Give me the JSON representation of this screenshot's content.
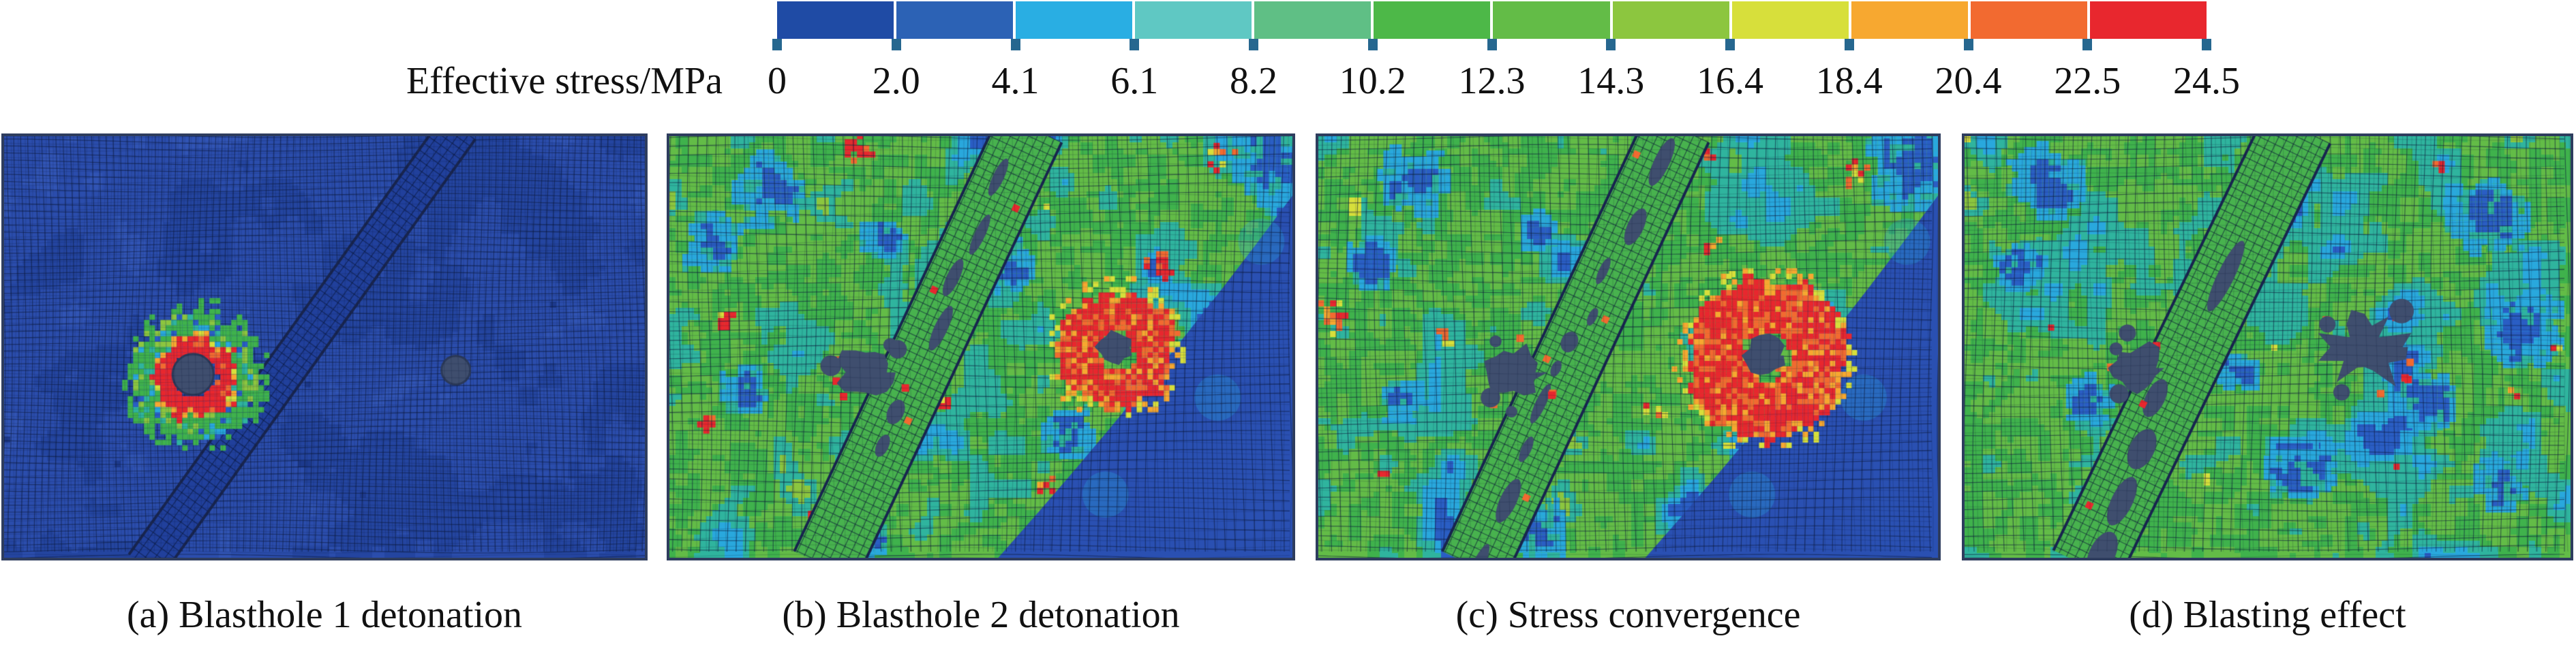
{
  "colorbar": {
    "label": "Effective stress/MPa",
    "tick_labels": [
      "0",
      "2.0",
      "4.1",
      "6.1",
      "8.2",
      "10.2",
      "12.3",
      "14.3",
      "16.4",
      "18.4",
      "20.4",
      "22.5",
      "24.5"
    ],
    "values_mpa": [
      0,
      2.0,
      4.1,
      6.1,
      8.2,
      10.2,
      12.3,
      14.3,
      16.4,
      18.4,
      20.4,
      22.5,
      24.5
    ],
    "segment_colors": [
      "#1f4ba5",
      "#2c62b5",
      "#29aee3",
      "#5fc8c3",
      "#5fbf85",
      "#4db848",
      "#63bc47",
      "#8cc63f",
      "#d7df3b",
      "#f7a830",
      "#f26a30",
      "#e8272e"
    ],
    "tick_color": "#26678f",
    "text_color": "#111111"
  },
  "panels": [
    {
      "id": "a",
      "caption": "(a) Blasthole 1 detonation"
    },
    {
      "id": "b",
      "caption": "(b) Blasthole 2 detonation"
    },
    {
      "id": "c",
      "caption": "(c) Stress convergence"
    },
    {
      "id": "d",
      "caption": "(d) Blasting effect"
    }
  ],
  "chart_data": {
    "type": "heatmap",
    "title": "",
    "legend_label": "Effective stress/MPa",
    "unit": "MPa",
    "scale_ticks": [
      0,
      2.0,
      4.1,
      6.1,
      8.2,
      10.2,
      12.3,
      14.3,
      16.4,
      18.4,
      20.4,
      22.5,
      24.5
    ],
    "scale_colors": [
      "#1f4ba5",
      "#2c62b5",
      "#29aee3",
      "#5fc8c3",
      "#5fbf85",
      "#4db848",
      "#63bc47",
      "#8cc63f",
      "#d7df3b",
      "#f7a830",
      "#f26a30",
      "#e8272e"
    ],
    "legend_position": "top",
    "grid": "finite-element mesh",
    "palette": {
      "green": "#3fb24c",
      "green2": "#63bc47",
      "lightgreen": "#8cc63f",
      "teal": "#2fb49e",
      "cyan": "#29a8dd",
      "blue": "#2a5ec4",
      "deepblue": "#2547a4",
      "yellow": "#d7df3b",
      "orange": "#f7a830",
      "orangered": "#f26a30",
      "red": "#e8272e",
      "void": "#3f4e6e",
      "regionblue": "#2a50b2"
    },
    "panels": [
      {
        "label": "(a) Blasthole 1 detonation",
        "summary": "Domain almost entirely at 0-2 MPa (dark blue); localized high-stress ring up to ~24.5 MPa around blasthole 1; blasthole 2 and inclined joint band still unstressed.",
        "features": {
          "seed": 11,
          "style": "blue",
          "mesh": 10,
          "band": {
            "top": 0.71,
            "bottom": 0.22,
            "width": 58,
            "damaged": false
          },
          "holes": [
            {
              "x": 0.295,
              "y": 0.565,
              "r": 30,
              "halo": "ring",
              "haloR": 96
            },
            {
              "x": 0.705,
              "y": 0.555,
              "r": 21,
              "halo": "plain"
            }
          ],
          "red_clusters": [],
          "blue_clusters": [],
          "dark_region": false
        }
      },
      {
        "label": "(b) Blasthole 2 detonation",
        "summary": "Stress spread over domain (mostly 6-12 MPa, green); >20 MPa red zone around blasthole 2 and spots along joint; damaged void elements at blasthole 1 and in joint band; 0-4 MPa shadow in lower-right corner.",
        "features": {
          "seed": 22,
          "style": "cool",
          "mesh": 14,
          "band": {
            "top": 0.58,
            "bottom": 0.25,
            "width": 100,
            "damaged": true,
            "scale": 1
          },
          "holes": [
            {
              "x": 0.315,
              "y": 0.56,
              "r": 46,
              "halo": "blob"
            },
            {
              "x": 0.715,
              "y": 0.5,
              "r": 26,
              "halo": "red",
              "haloR": 86
            }
          ],
          "red_clusters": [
            [
              0.3,
              0.02,
              26
            ],
            [
              0.57,
              0.08,
              18
            ],
            [
              0.08,
              0.42,
              20
            ],
            [
              0.88,
              0.04,
              24
            ],
            [
              0.78,
              0.3,
              26
            ],
            [
              0.43,
              0.63,
              16
            ],
            [
              0.6,
              0.82,
              18
            ],
            [
              0.23,
              0.9,
              16
            ],
            [
              0.05,
              0.67,
              14
            ]
          ],
          "blue_clusters": [
            [
              0.16,
              0.12,
              55
            ],
            [
              0.07,
              0.25,
              45
            ],
            [
              0.54,
              0.3,
              38
            ],
            [
              0.34,
              0.24,
              32
            ],
            [
              0.64,
              0.7,
              40
            ],
            [
              0.12,
              0.6,
              36
            ],
            [
              0.97,
              0.05,
              70
            ],
            [
              0.3,
              0.95,
              45
            ]
          ],
          "dark_region": true
        }
      },
      {
        "label": "(c) Stress convergence",
        "summary": "Converged field; broad red concentration >20 MPa around blasthole 2 reaching the joint; green 6-12 MPa elsewhere; low-stress blue shadow in lower-right corner.",
        "features": {
          "seed": 33,
          "style": "cool",
          "mesh": 14,
          "band": {
            "top": 0.58,
            "bottom": 0.25,
            "width": 100,
            "damaged": true,
            "scale": 1
          },
          "holes": [
            {
              "x": 0.315,
              "y": 0.56,
              "r": 45,
              "halo": "blob"
            },
            {
              "x": 0.72,
              "y": 0.52,
              "r": 30,
              "halo": "red",
              "haloR": 118
            }
          ],
          "red_clusters": [
            [
              0.02,
              0.42,
              28
            ],
            [
              0.2,
              0.47,
              18
            ],
            [
              0.86,
              0.08,
              26
            ],
            [
              0.62,
              0.04,
              16
            ],
            [
              0.3,
              0.7,
              14
            ],
            [
              0.1,
              0.8,
              13
            ],
            [
              0.52,
              0.64,
              14
            ],
            [
              0.42,
              0.35,
              12
            ],
            [
              0.63,
              0.25,
              16
            ]
          ],
          "blue_clusters": [
            [
              0.15,
              0.1,
              50
            ],
            [
              0.08,
              0.3,
              40
            ],
            [
              0.35,
              0.22,
              30
            ],
            [
              0.96,
              0.06,
              70
            ],
            [
              0.35,
              0.93,
              45
            ],
            [
              0.13,
              0.62,
              34
            ]
          ],
          "dark_region": true
        }
      },
      {
        "label": "(d) Blasting effect",
        "summary": "Final state; jagged crushed cavity at blasthole 2 with red fringe; enlarged voids along joint band; moderate 6-12 MPa green field with scattered 0-4 MPa blue patches.",
        "features": {
          "seed": 44,
          "style": "cool",
          "mesh": 14,
          "blueShift": 0.05,
          "band": {
            "top": 0.55,
            "bottom": 0.2,
            "width": 105,
            "damaged": true,
            "scale": 1.55
          },
          "holes": [
            {
              "x": 0.285,
              "y": 0.55,
              "r": 42,
              "halo": "blob"
            },
            {
              "x": 0.66,
              "y": 0.5,
              "r": 62,
              "halo": "star"
            }
          ],
          "red_clusters": [
            [
              0.55,
              0.02,
              18
            ],
            [
              0.78,
              0.07,
              16
            ],
            [
              0.47,
              0.3,
              12
            ],
            [
              0.3,
              0.7,
              11
            ],
            [
              0.9,
              0.6,
              12
            ],
            [
              0.13,
              0.45,
              11
            ],
            [
              0.7,
              0.78,
              11
            ],
            [
              0.97,
              0.5,
              12
            ]
          ],
          "blue_clusters": [
            [
              0.13,
              0.1,
              55
            ],
            [
              0.86,
              0.18,
              60
            ],
            [
              0.92,
              0.45,
              55
            ],
            [
              0.76,
              0.62,
              45
            ],
            [
              0.55,
              0.78,
              50
            ],
            [
              0.2,
              0.62,
              38
            ],
            [
              0.09,
              0.3,
              38
            ],
            [
              0.88,
              0.82,
              45
            ],
            [
              0.45,
              0.55,
              30
            ]
          ],
          "dark_region": false
        }
      }
    ]
  }
}
